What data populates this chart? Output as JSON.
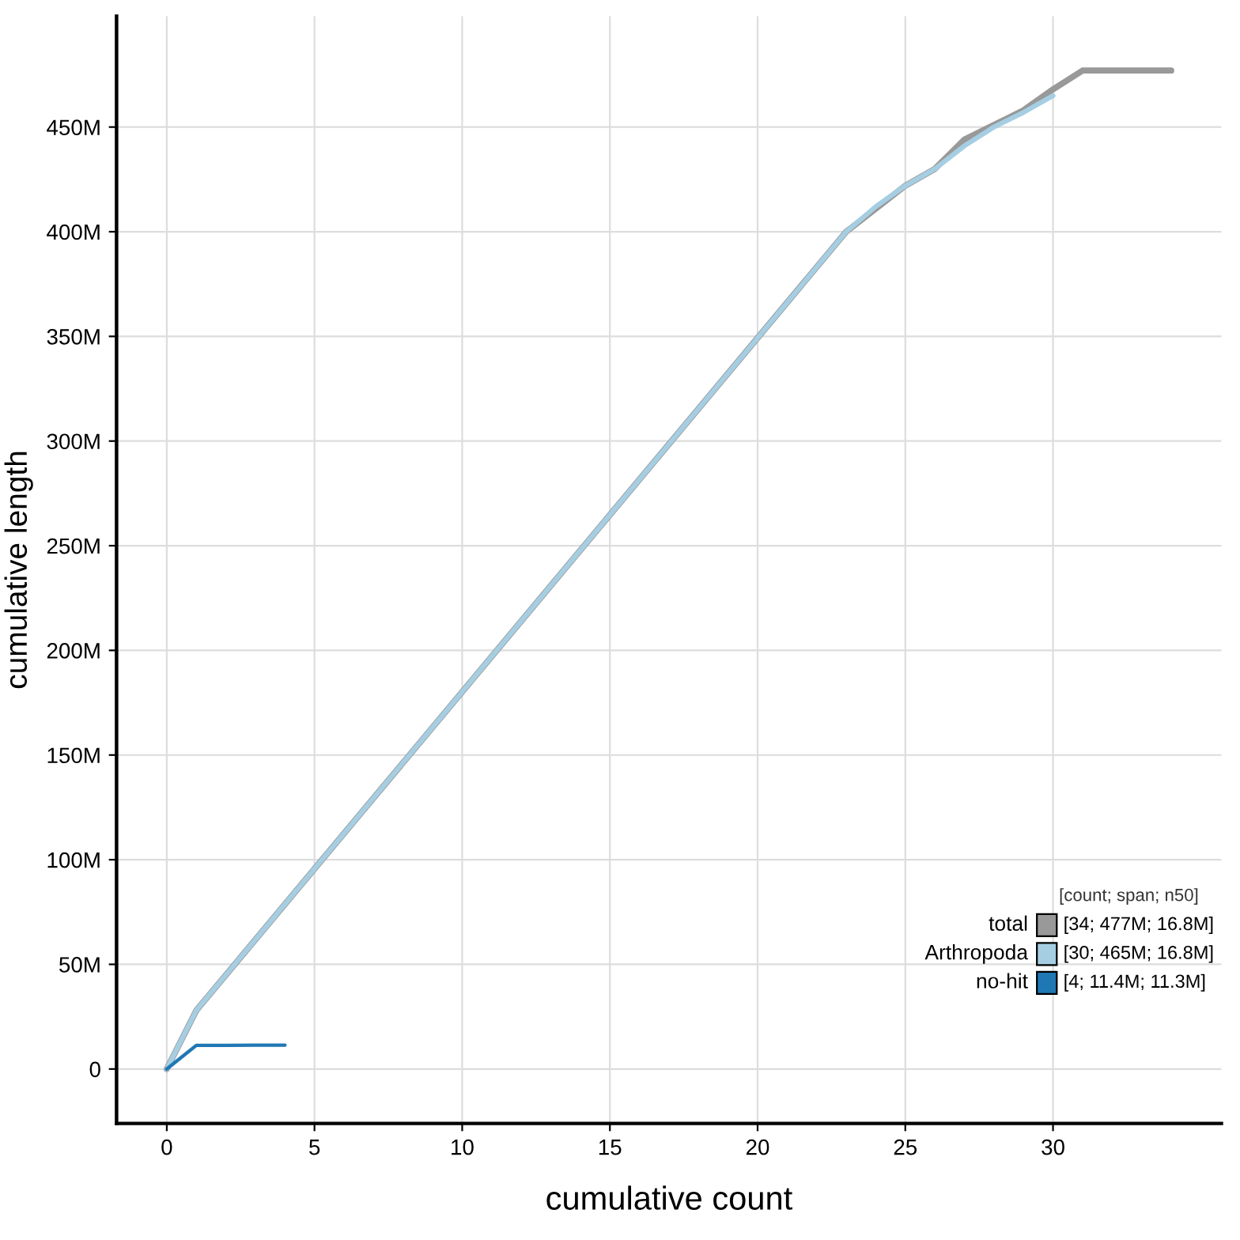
{
  "chart_data": {
    "type": "line",
    "xlabel": "cumulative count",
    "ylabel": "cumulative length",
    "legend_title": "[count; span; n50]",
    "annotations": [
      "[34; 477M; 16.8M]",
      "[30; 465M; 16.8M]",
      "[4; 11.4M; 11.3M]"
    ],
    "series": [
      {
        "name": "total",
        "color": "#999999",
        "x": [
          0,
          1,
          23,
          25,
          26,
          27,
          28,
          29,
          30,
          31,
          34
        ],
        "values": [
          0,
          28,
          400,
          422,
          430,
          444,
          451,
          458,
          468,
          477,
          477
        ]
      },
      {
        "name": "Arthropoda",
        "color": "#a6cee3",
        "x": [
          0,
          1,
          23,
          24,
          25,
          26,
          27,
          28,
          29,
          30
        ],
        "values": [
          0,
          28,
          400,
          412,
          422,
          430,
          441,
          450,
          457,
          465
        ]
      },
      {
        "name": "no-hit",
        "color": "#1f78b4",
        "x": [
          0,
          1,
          2,
          3,
          4
        ],
        "values": [
          0,
          11.3,
          11.3,
          11.4,
          11.4
        ]
      }
    ],
    "xlim": [
      -1.7,
      35.7
    ],
    "xticks": [
      0,
      5,
      10,
      15,
      20,
      25,
      30
    ],
    "ylim": [
      -26,
      503
    ],
    "yticks": [
      0,
      {
        "value": 50,
        "label": "50M"
      },
      {
        "value": 100,
        "label": "100M"
      },
      {
        "value": 150,
        "label": "150M"
      },
      {
        "value": 200,
        "label": "200M"
      },
      {
        "value": 250,
        "label": "250M"
      },
      {
        "value": 300,
        "label": "300M"
      },
      {
        "value": 350,
        "label": "350M"
      },
      {
        "value": 400,
        "label": "400M"
      },
      {
        "value": 450,
        "label": "450M"
      }
    ],
    "grid": true,
    "legend": "bottom right",
    "line_style": "solid"
  }
}
